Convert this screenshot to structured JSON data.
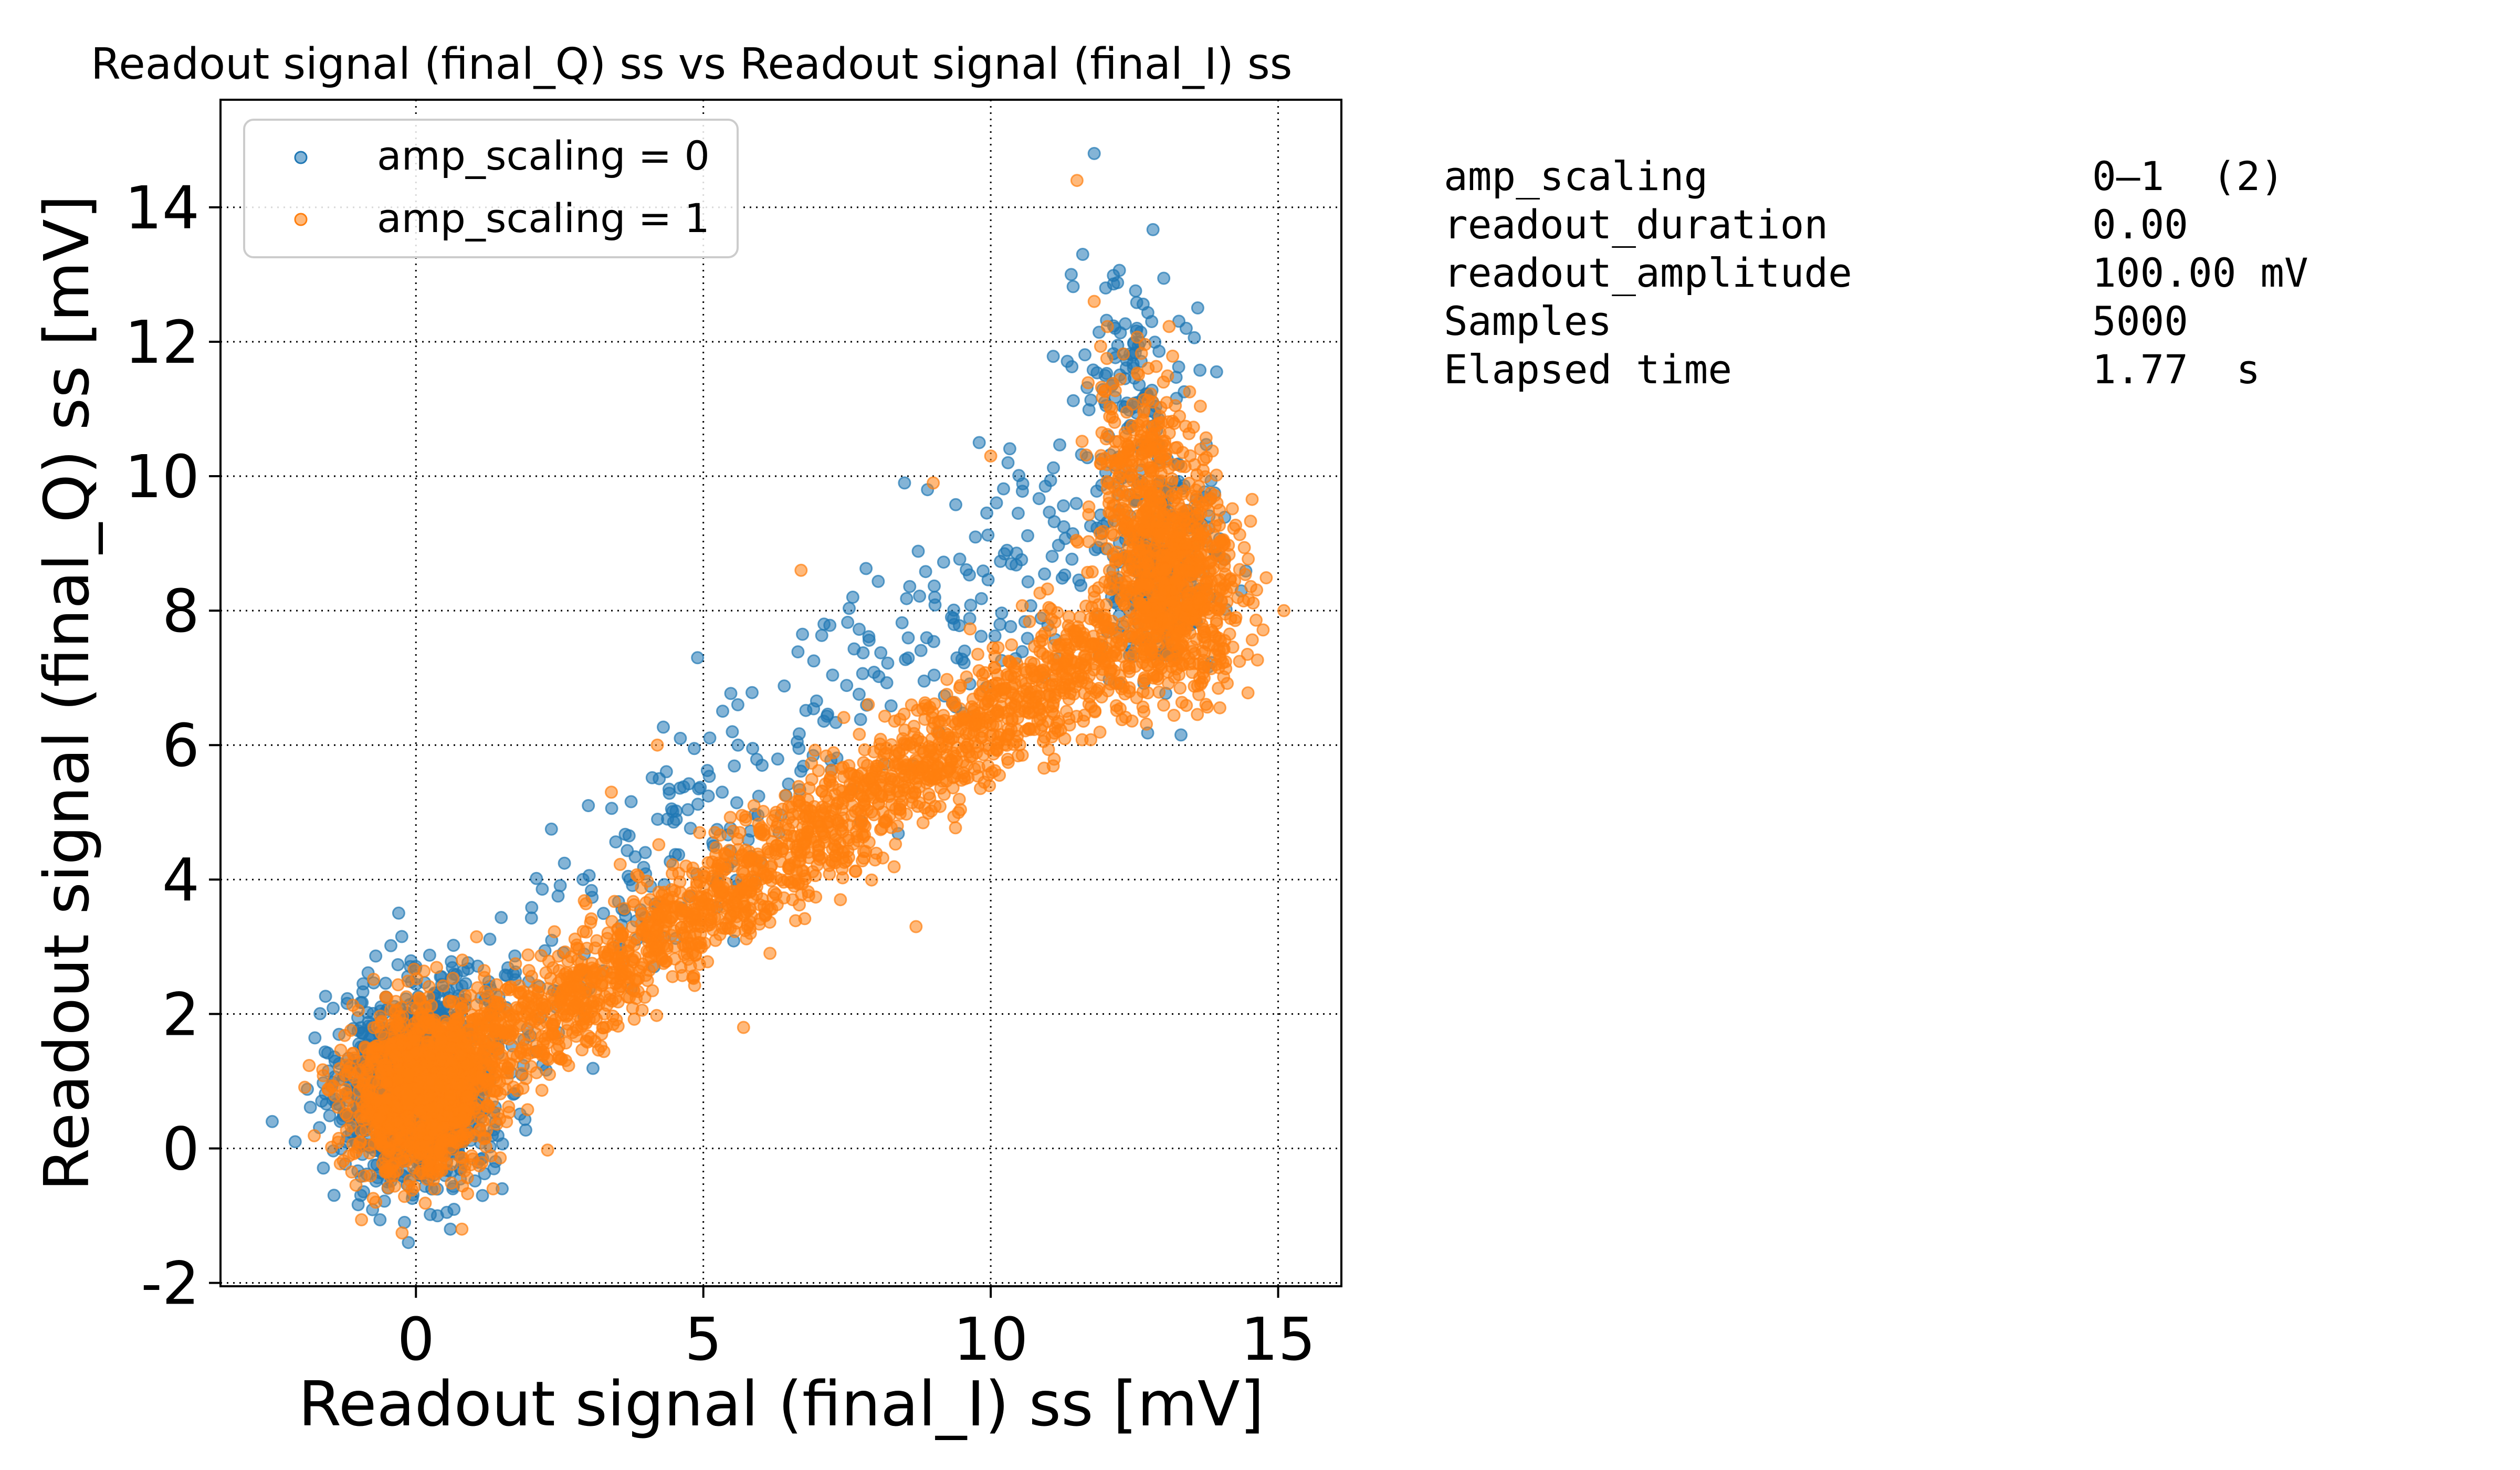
{
  "chart_data": {
    "type": "scatter",
    "title": "Readout signal (final_Q) ss vs Readout signal (final_I) ss",
    "xlabel": "Readout signal (final_I) ss [mV]",
    "ylabel": "Readout signal (final_Q) ss [mV]",
    "xlim": [
      -3.4,
      16.1
    ],
    "ylim": [
      -2.05,
      15.6
    ],
    "xticks": [
      0,
      5,
      10,
      15
    ],
    "xtick_labels": [
      "0",
      "5",
      "10",
      "15"
    ],
    "yticks": [
      -2,
      0,
      2,
      4,
      6,
      8,
      10,
      12,
      14
    ],
    "ytick_labels": [
      "-2",
      "0",
      "2",
      "4",
      "6",
      "8",
      "10",
      "12",
      "14"
    ],
    "grid": true,
    "grid_style": "dotted",
    "legend_position": "upper-left",
    "series": [
      {
        "name": "amp_scaling = 0",
        "color": "#1f77b4",
        "clusters": [
          {
            "cx": 0.0,
            "cy": 0.9,
            "sx": 0.65,
            "sy": 0.7,
            "n": 1200
          },
          {
            "cx": 13.0,
            "cy": 8.6,
            "sx": 0.55,
            "sy": 0.8,
            "n": 260
          },
          {
            "cx": 12.4,
            "cy": 11.2,
            "sx": 0.5,
            "sy": 0.9,
            "n": 120
          }
        ],
        "diagonal": {
          "x0": 0.2,
          "y0": 1.3,
          "x1": 11.8,
          "y1": 9.6,
          "spread": 0.75,
          "n": 360
        },
        "points": [
          [
            11.8,
            14.8
          ],
          [
            11.4,
            13.0
          ],
          [
            11.6,
            13.3
          ],
          [
            12.0,
            12.8
          ],
          [
            12.8,
            12.3
          ],
          [
            13.4,
            12.2
          ],
          [
            8.5,
            9.9
          ],
          [
            8.9,
            9.8
          ],
          [
            7.6,
            8.2
          ],
          [
            7.1,
            7.8
          ],
          [
            4.9,
            7.3
          ],
          [
            5.6,
            6.6
          ],
          [
            3.0,
            5.1
          ],
          [
            4.6,
            6.1
          ],
          [
            9.8,
            10.5
          ],
          [
            10.3,
            10.2
          ],
          [
            -2.5,
            0.4
          ],
          [
            -2.1,
            0.1
          ],
          [
            -0.3,
            3.5
          ],
          [
            0.6,
            -1.2
          ],
          [
            -0.2,
            -1.1
          ],
          [
            1.5,
            -0.6
          ]
        ]
      },
      {
        "name": "amp_scaling = 1",
        "color": "#ff7f0e",
        "clusters": [
          {
            "cx": 0.05,
            "cy": 0.85,
            "sx": 0.6,
            "sy": 0.65,
            "n": 1100
          },
          {
            "cx": 13.2,
            "cy": 8.4,
            "sx": 0.6,
            "sy": 0.75,
            "n": 800
          },
          {
            "cx": 12.6,
            "cy": 10.3,
            "sx": 0.45,
            "sy": 0.7,
            "n": 220
          }
        ],
        "diagonal": {
          "x0": 0.3,
          "y0": 0.9,
          "x1": 12.2,
          "y1": 7.6,
          "spread": 0.42,
          "n": 1900
        },
        "points": [
          [
            11.5,
            14.4
          ],
          [
            11.8,
            12.6
          ],
          [
            6.7,
            8.6
          ],
          [
            9.0,
            9.9
          ],
          [
            10.0,
            10.3
          ],
          [
            8.7,
            3.3
          ],
          [
            5.7,
            1.8
          ],
          [
            15.1,
            8.0
          ],
          [
            4.2,
            6.0
          ],
          [
            3.4,
            5.3
          ],
          [
            0.8,
            -1.2
          ],
          [
            -0.7,
            -0.8
          ],
          [
            12.1,
            11.0
          ]
        ]
      }
    ]
  },
  "legend": {
    "items": [
      "amp_scaling = 0",
      "amp_scaling = 1"
    ]
  },
  "info_panel": {
    "rows": [
      {
        "label": "amp_scaling",
        "value": "0–1  (2)"
      },
      {
        "label": "readout_duration",
        "value": "0.00"
      },
      {
        "label": "readout_amplitude",
        "value": "100.00 mV"
      },
      {
        "label": "Samples",
        "value": "5000"
      },
      {
        "label": "Elapsed time",
        "value": "1.77  s"
      }
    ]
  }
}
